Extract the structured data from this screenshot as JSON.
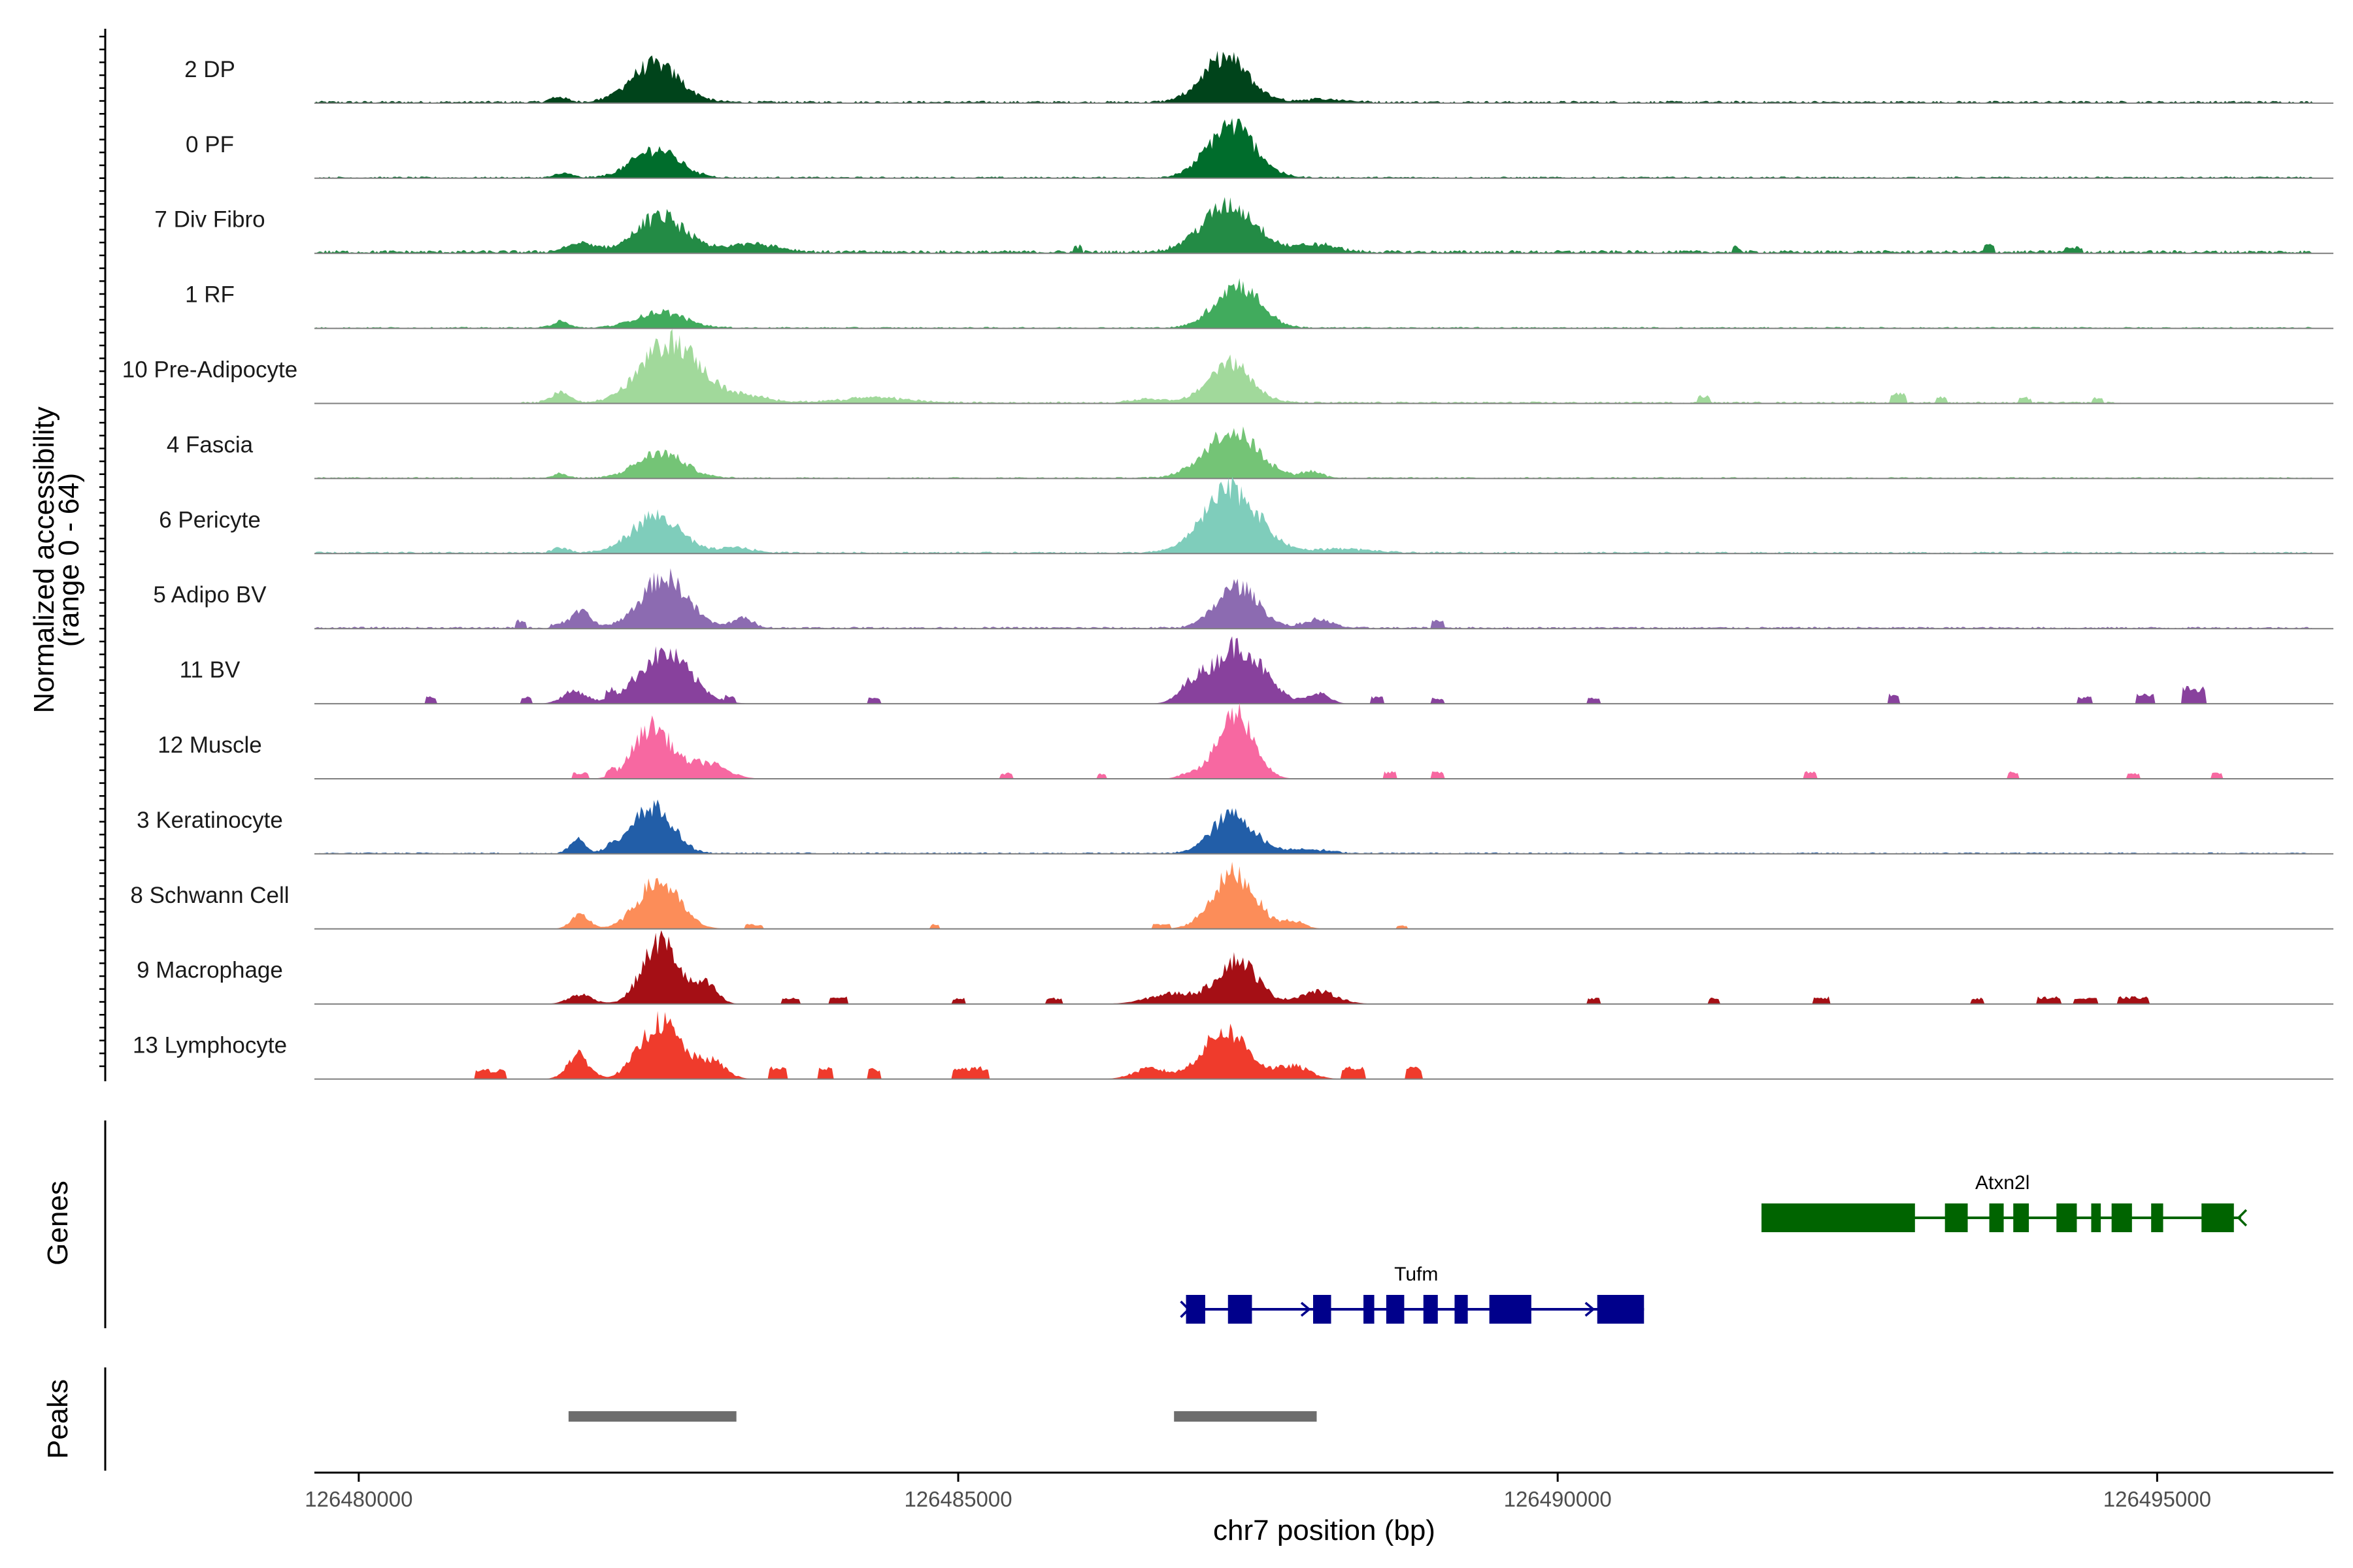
{
  "chart_data": {
    "type": "area",
    "ylabel": "Normalized accessibility",
    "ylabel_range": "(range 0 - 64)",
    "ylim": [
      0,
      64
    ],
    "xlabel": "chr7 position (bp)",
    "xlim": [
      126479630,
      126496470
    ],
    "x_ticks": [
      126480000,
      126485000,
      126490000,
      126495000
    ],
    "x_tick_labels": [
      "126480000",
      "126485000",
      "126490000",
      "126495000"
    ],
    "tracks": [
      {
        "name": "2 DP",
        "color": "#00441b",
        "peaks": [
          [
            126482470,
            36,
            450
          ],
          [
            126487230,
            42,
            420
          ],
          [
            126481670,
            5,
            150
          ],
          [
            126488050,
            3,
            400
          ]
        ],
        "noise": 2.2,
        "noise_range": [
          126479640,
          126496300
        ],
        "blips": []
      },
      {
        "name": "0 PF",
        "color": "#006d2c",
        "peaks": [
          [
            126482480,
            27,
            420
          ],
          [
            126487280,
            50,
            430
          ],
          [
            126481710,
            4,
            150
          ]
        ],
        "noise": 1.6,
        "noise_range": [
          126479640,
          126496300
        ],
        "blips": []
      },
      {
        "name": "7 Div Fibro",
        "color": "#238b45",
        "peaks": [
          [
            126482520,
            34,
            450
          ],
          [
            126487260,
            44,
            500
          ],
          [
            126481850,
            8,
            260
          ],
          [
            126483300,
            8,
            450
          ],
          [
            126488000,
            7,
            350
          ]
        ],
        "noise": 3,
        "noise_range": [
          126479640,
          126496300
        ],
        "blips": [
          [
            126486000,
            5,
            80
          ],
          [
            126491500,
            4,
            80
          ],
          [
            126493600,
            6,
            100
          ],
          [
            126494300,
            4,
            150
          ]
        ]
      },
      {
        "name": "1 RF",
        "color": "#41ab5d",
        "peaks": [
          [
            126482520,
            15,
            450
          ],
          [
            126487330,
            41,
            410
          ],
          [
            126481680,
            6,
            150
          ]
        ],
        "noise": 1.4,
        "noise_range": [
          126479640,
          126496300
        ],
        "blips": []
      },
      {
        "name": "10 Pre-Adipocyte",
        "color": "#a1d99b",
        "peaks": [
          [
            126482600,
            58,
            520
          ],
          [
            126487270,
            38,
            390
          ],
          [
            126481680,
            10,
            170
          ],
          [
            126483200,
            6,
            500
          ],
          [
            126484300,
            5,
            600
          ],
          [
            126486600,
            4,
            300
          ]
        ],
        "noise": 1.8,
        "noise_range": [
          126481300,
          126494700
        ],
        "blips": [
          [
            126491220,
            6,
            100
          ],
          [
            126492840,
            8,
            140
          ],
          [
            126493200,
            5,
            100
          ],
          [
            126493900,
            4,
            100
          ],
          [
            126494500,
            4,
            100
          ]
        ]
      },
      {
        "name": "4 Fascia",
        "color": "#74c476",
        "peaks": [
          [
            126482520,
            24,
            430
          ],
          [
            126487280,
            45,
            480
          ],
          [
            126481680,
            4,
            120
          ],
          [
            126487950,
            6,
            200
          ]
        ],
        "noise": 1.4,
        "noise_range": [
          126479640,
          126496300
        ],
        "blips": []
      },
      {
        "name": "6 Pericyte",
        "color": "#7fcdbb",
        "peaks": [
          [
            126482480,
            35,
            440
          ],
          [
            126487280,
            60,
            500
          ],
          [
            126481680,
            5,
            140
          ],
          [
            126483150,
            5,
            300
          ],
          [
            126488200,
            4,
            500
          ]
        ],
        "noise": 1.8,
        "noise_range": [
          126479640,
          126496300
        ],
        "blips": []
      },
      {
        "name": "5 Adipo BV",
        "color": "#8c6bb1",
        "peaks": [
          [
            126482550,
            48,
            420
          ],
          [
            126487330,
            40,
            380
          ],
          [
            126481850,
            16,
            180
          ],
          [
            126483200,
            9,
            200
          ],
          [
            126488000,
            8,
            250
          ]
        ],
        "noise": 1.8,
        "noise_range": [
          126479640,
          126496300
        ],
        "blips": [
          [
            126481350,
            6,
            100
          ],
          [
            126481650,
            3,
            100
          ],
          [
            126489000,
            7,
            120
          ]
        ]
      },
      {
        "name": "11 BV",
        "color": "#88419d",
        "peaks": [
          [
            126482550,
            48,
            480
          ],
          [
            126487330,
            55,
            470
          ],
          [
            126481800,
            12,
            220
          ],
          [
            126486950,
            14,
            220
          ],
          [
            126488000,
            10,
            200
          ]
        ],
        "noise": 0,
        "noise_range": [
          126479640,
          126496300
        ],
        "blips": [
          [
            126480600,
            6,
            100
          ],
          [
            126481400,
            6,
            100
          ],
          [
            126482100,
            7,
            100
          ],
          [
            126483100,
            5,
            100
          ],
          [
            126484300,
            5,
            100
          ],
          [
            126488500,
            6,
            110
          ],
          [
            126489000,
            5,
            100
          ],
          [
            126490300,
            5,
            100
          ],
          [
            126492800,
            8,
            100
          ],
          [
            126494400,
            6,
            120
          ],
          [
            126494900,
            8,
            150
          ],
          [
            126495300,
            14,
            200
          ]
        ]
      },
      {
        "name": "12 Muscle",
        "color": "#f768a1",
        "peaks": [
          [
            126482450,
            50,
            340
          ],
          [
            126487320,
            63,
            320
          ],
          [
            126482900,
            15,
            350
          ],
          [
            126486950,
            6,
            200
          ]
        ],
        "noise": 0,
        "noise_range": [
          126479640,
          126496300
        ],
        "blips": [
          [
            126481850,
            5,
            130
          ],
          [
            126482100,
            5,
            100
          ],
          [
            126485400,
            5,
            100
          ],
          [
            126486200,
            5,
            80
          ],
          [
            126488600,
            6,
            100
          ],
          [
            126489000,
            6,
            100
          ],
          [
            126492110,
            6,
            100
          ],
          [
            126493800,
            6,
            100
          ],
          [
            126494800,
            5,
            100
          ],
          [
            126495500,
            5,
            100
          ]
        ]
      },
      {
        "name": "3 Keratinocyte",
        "color": "#225ea8",
        "peaks": [
          [
            126482450,
            44,
            360
          ],
          [
            126487290,
            37,
            380
          ],
          [
            126481830,
            14,
            140
          ],
          [
            126482100,
            6,
            100
          ],
          [
            126487900,
            4,
            400
          ]
        ],
        "noise": 1.4,
        "noise_range": [
          126479640,
          126496300
        ],
        "blips": []
      },
      {
        "name": "8 Schwann Cell",
        "color": "#fc8d59",
        "peaks": [
          [
            126482500,
            45,
            380
          ],
          [
            126487300,
            53,
            390
          ],
          [
            126481850,
            13,
            170
          ],
          [
            126487800,
            7,
            200
          ]
        ],
        "noise": 0,
        "noise_range": [
          126479640,
          126496300
        ],
        "blips": [
          [
            126483300,
            4,
            150
          ],
          [
            126484800,
            4,
            80
          ],
          [
            126486700,
            4,
            150
          ],
          [
            126488700,
            3,
            100
          ]
        ]
      },
      {
        "name": "9 Macrophage",
        "color": "#a50f15",
        "peaks": [
          [
            126482520,
            60,
            330
          ],
          [
            126487330,
            42,
            360
          ],
          [
            126482900,
            18,
            200
          ],
          [
            126481850,
            9,
            220
          ],
          [
            126486800,
            10,
            450
          ],
          [
            126488000,
            12,
            350
          ]
        ],
        "noise": 0,
        "noise_range": [
          126479640,
          126496300
        ],
        "blips": [
          [
            126483600,
            5,
            150
          ],
          [
            126484000,
            6,
            150
          ],
          [
            126485000,
            5,
            100
          ],
          [
            126485800,
            5,
            150
          ],
          [
            126490300,
            5,
            100
          ],
          [
            126492200,
            6,
            150
          ],
          [
            126491300,
            5,
            100
          ],
          [
            126493500,
            5,
            100
          ],
          [
            126494100,
            6,
            200
          ],
          [
            126494400,
            5,
            200
          ],
          [
            126494800,
            6,
            250
          ]
        ]
      },
      {
        "name": "13 Lymphocyte",
        "color": "#ef3b2c",
        "peaks": [
          [
            126482520,
            54,
            380
          ],
          [
            126487230,
            46,
            420
          ],
          [
            126481830,
            23,
            200
          ],
          [
            126482950,
            16,
            250
          ],
          [
            126486600,
            10,
            300
          ],
          [
            126487800,
            12,
            300
          ]
        ],
        "noise": 0,
        "noise_range": [
          126479640,
          126496300
        ],
        "blips": [
          [
            126481100,
            8,
            250
          ],
          [
            126483500,
            10,
            150
          ],
          [
            126483900,
            10,
            120
          ],
          [
            126484300,
            9,
            100
          ],
          [
            126485100,
            10,
            300
          ],
          [
            126488300,
            10,
            200
          ],
          [
            126488800,
            10,
            150
          ]
        ]
      }
    ],
    "genes_label": "Genes",
    "genes": [
      {
        "name": "Atxn2l",
        "color": "#006400",
        "start": 126491700,
        "end": 126495700,
        "strand": "-",
        "row": 0,
        "exons": [
          [
            126491700,
            126492980
          ],
          [
            126493230,
            126493420
          ],
          [
            126493600,
            126493720
          ],
          [
            126493800,
            126493930
          ],
          [
            126494160,
            126494330
          ],
          [
            126494450,
            126494530
          ],
          [
            126494620,
            126494790
          ],
          [
            126494950,
            126495050
          ],
          [
            126495370,
            126495640
          ]
        ]
      },
      {
        "name": "Tufm",
        "color": "#00008b",
        "start": 126486900,
        "end": 126490720,
        "strand": "+",
        "row": 1,
        "exons": [
          [
            126486900,
            126487060
          ],
          [
            126487250,
            126487450
          ],
          [
            126487960,
            126488110
          ],
          [
            126488380,
            126488470
          ],
          [
            126488570,
            126488720
          ],
          [
            126488880,
            126489000
          ],
          [
            126489140,
            126489250
          ],
          [
            126489430,
            126489780
          ],
          [
            126490330,
            126490720
          ]
        ]
      }
    ],
    "peaks_label": "Peaks",
    "peak_regions": [
      [
        126481750,
        126483150
      ],
      [
        126486800,
        126487990
      ]
    ]
  }
}
